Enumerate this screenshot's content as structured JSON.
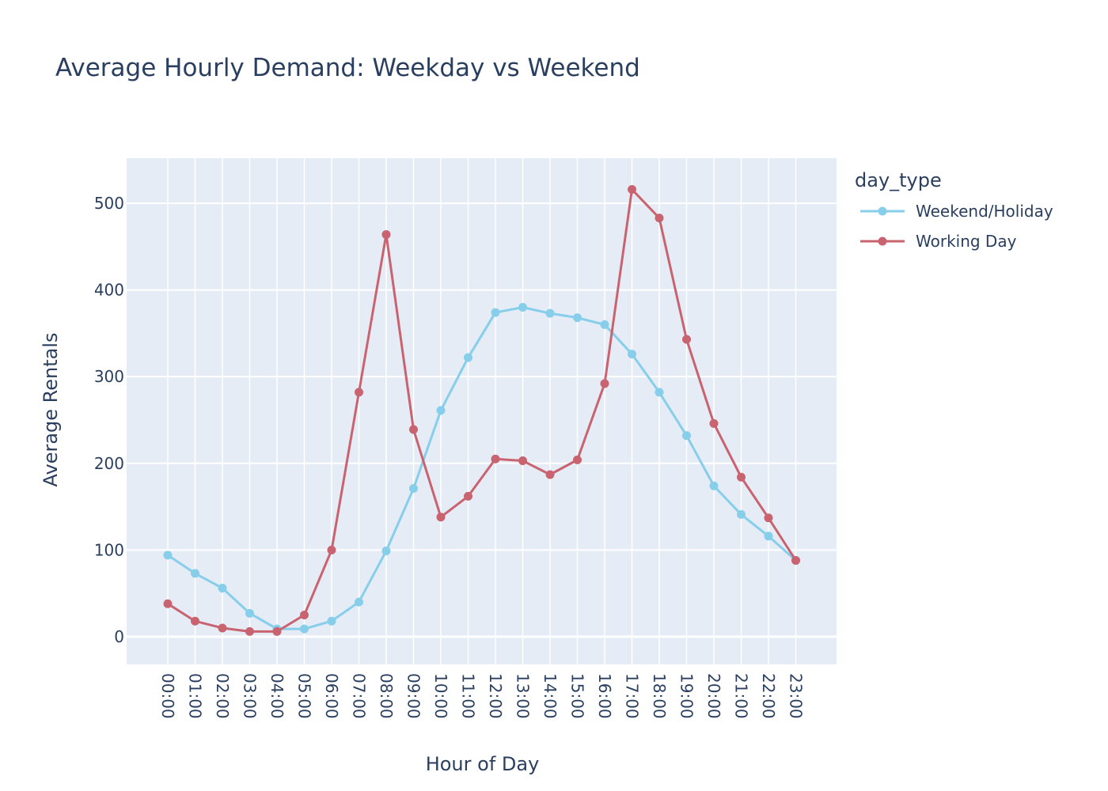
{
  "chart_data": {
    "type": "line",
    "title": "Average Hourly Demand: Weekday vs Weekend",
    "xlabel": "Hour of Day",
    "ylabel": "Average Rentals",
    "categories": [
      "00:00",
      "01:00",
      "02:00",
      "03:00",
      "04:00",
      "05:00",
      "06:00",
      "07:00",
      "08:00",
      "09:00",
      "10:00",
      "11:00",
      "12:00",
      "13:00",
      "14:00",
      "15:00",
      "16:00",
      "17:00",
      "18:00",
      "19:00",
      "20:00",
      "21:00",
      "22:00",
      "23:00"
    ],
    "ylim": [
      -32,
      552
    ],
    "yticks": [
      0,
      100,
      200,
      300,
      400,
      500
    ],
    "grid": true,
    "legend_title": "day_type",
    "legend_position": "right",
    "series": [
      {
        "name": "Weekend/Holiday",
        "color": "#87ceeb",
        "values": [
          94,
          73,
          56,
          27,
          9,
          9,
          18,
          40,
          99,
          171,
          261,
          322,
          374,
          380,
          373,
          368,
          360,
          326,
          282,
          232,
          174,
          141,
          116,
          88
        ]
      },
      {
        "name": "Working Day",
        "color": "#c8636f",
        "values": [
          38,
          18,
          10,
          6,
          6,
          25,
          100,
          282,
          464,
          239,
          138,
          162,
          205,
          203,
          187,
          204,
          292,
          516,
          483,
          343,
          246,
          184,
          137,
          88
        ]
      }
    ]
  }
}
